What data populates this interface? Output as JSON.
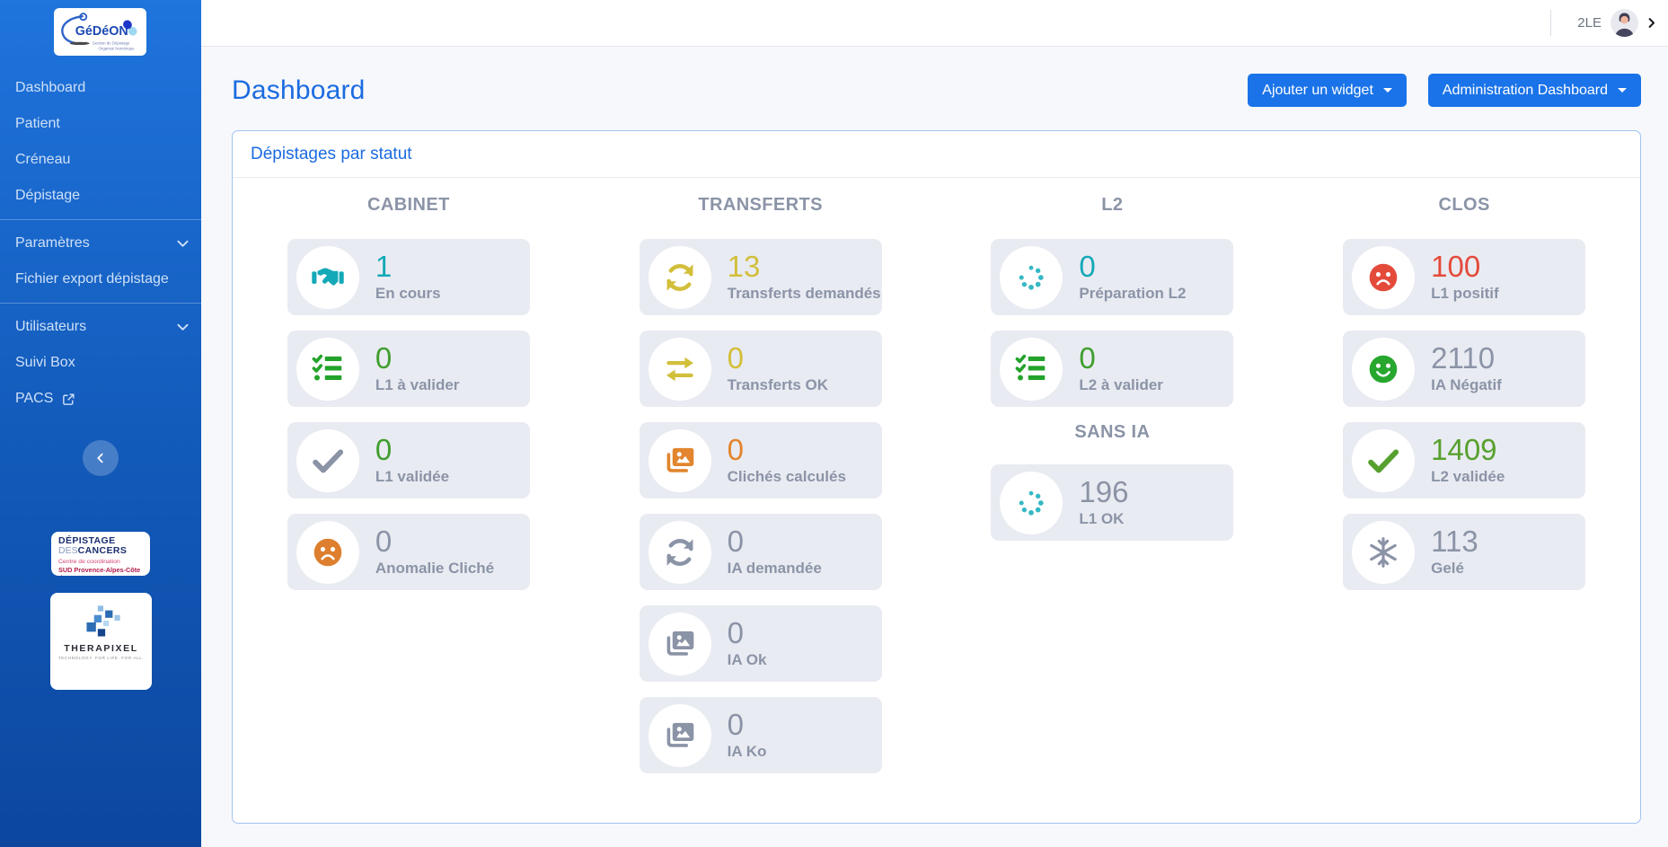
{
  "app_logo": {
    "title": "GéDéON",
    "subtitle1": "Gestion du Dépistage",
    "subtitle2": "Organisé Numérique"
  },
  "topbar": {
    "user_label": "2LE"
  },
  "sidebar": {
    "items": [
      {
        "label": "Dashboard"
      },
      {
        "label": "Patient"
      },
      {
        "label": "Créneau"
      },
      {
        "label": "Dépistage",
        "divider_after": true
      },
      {
        "label": "Paramètres",
        "chevron": true
      },
      {
        "label": "Fichier export dépistage",
        "divider_after": true
      },
      {
        "label": "Utilisateurs",
        "chevron": true
      },
      {
        "label": "Suivi Box"
      },
      {
        "label": "PACS",
        "external": true
      }
    ],
    "partner_logos": {
      "depistage": {
        "line1": "DÉPISTAGE",
        "line2_light": "DES",
        "line2_bold": "CANCERS",
        "line3": "Centre de coordination",
        "line4": "SUD Provence-Alpes-Côte d'Azur"
      },
      "therapixel": {
        "title": "THERAPIXEL",
        "tagline": "TECHNOLOGY. FOR LIFE. FOR ALL."
      }
    }
  },
  "header": {
    "title": "Dashboard",
    "add_widget_label": "Ajouter un widget",
    "admin_label": "Administration Dashboard"
  },
  "widget": {
    "title": "Dépistages par statut",
    "columns": [
      {
        "sections": [
          {
            "header": "CABINET",
            "cards": [
              {
                "value": "1",
                "label": "En cours",
                "icon": "handshake",
                "icon_color": "#14a9b8",
                "value_color": "#14a9b8"
              },
              {
                "value": "0",
                "label": "L1 à valider",
                "icon": "tasks",
                "icon_color": "#23a32b",
                "value_color": "#3f9e2e"
              },
              {
                "value": "0",
                "label": "L1 validée",
                "icon": "check",
                "icon_color": "#8b93a6",
                "value_color": "#3f9e2e"
              },
              {
                "value": "0",
                "label": "Anomalie Cliché",
                "icon": "frown",
                "icon_color": "#dd7f2e",
                "value_color": "#8b93a6"
              }
            ]
          }
        ]
      },
      {
        "sections": [
          {
            "header": "TRANSFERTS",
            "cards": [
              {
                "value": "13",
                "label": "Transferts demandés",
                "icon": "sync",
                "icon_color": "#d2bf3a",
                "value_color": "#d2bf3a"
              },
              {
                "value": "0",
                "label": "Transferts OK",
                "icon": "exchange",
                "icon_color": "#d2bf3a",
                "value_color": "#d2bf3a"
              },
              {
                "value": "0",
                "label": "Clichés calculés",
                "icon": "images",
                "icon_color": "#e2852e",
                "value_color": "#e2852e"
              },
              {
                "value": "0",
                "label": "IA demandée",
                "icon": "sync",
                "icon_color": "#8b93a6",
                "value_color": "#8b93a6"
              },
              {
                "value": "0",
                "label": "IA Ok",
                "icon": "images",
                "icon_color": "#8b93a6",
                "value_color": "#8b93a6"
              },
              {
                "value": "0",
                "label": "IA Ko",
                "icon": "images",
                "icon_color": "#8b93a6",
                "value_color": "#8b93a6"
              }
            ]
          }
        ]
      },
      {
        "sections": [
          {
            "header": "L2",
            "cards": [
              {
                "value": "0",
                "label": "Préparation L2",
                "icon": "spinner",
                "icon_color": "#35b8c4",
                "value_color": "#14a9b8"
              },
              {
                "value": "0",
                "label": "L2 à valider",
                "icon": "tasks",
                "icon_color": "#23a32b",
                "value_color": "#3f9e2e"
              }
            ]
          },
          {
            "header": "SANS IA",
            "cards": [
              {
                "value": "196",
                "label": "L1 OK",
                "icon": "spinner",
                "icon_color": "#35b8c4",
                "value_color": "#8b93a6"
              }
            ]
          }
        ]
      },
      {
        "sections": [
          {
            "header": "CLOS",
            "cards": [
              {
                "value": "100",
                "label": "L1 positif",
                "icon": "frown",
                "icon_color": "#e44a3a",
                "value_color": "#e44a3a"
              },
              {
                "value": "2110",
                "label": "IA Négatif",
                "icon": "smile",
                "icon_color": "#28a72e",
                "value_color": "#8b93a6"
              },
              {
                "value": "1409",
                "label": "L2 validée",
                "icon": "check",
                "icon_color": "#57a02e",
                "value_color": "#57a02e"
              },
              {
                "value": "113",
                "label": "Gelé",
                "icon": "snowflake",
                "icon_color": "#8b93a6",
                "value_color": "#8b93a6"
              }
            ]
          }
        ]
      }
    ]
  },
  "colors": {
    "accent_blue": "#1a73e8",
    "title_blue": "#1b6be1",
    "sidebar_top": "#1f74dd",
    "sidebar_bottom": "#0c47a0",
    "teal": "#14a9b8",
    "green": "#3f9e2e",
    "yellow": "#d2bf3a",
    "orange": "#e2852e",
    "red": "#e44a3a",
    "muted_gray": "#8b94a7",
    "tile_bg": "#e9ebf2"
  }
}
